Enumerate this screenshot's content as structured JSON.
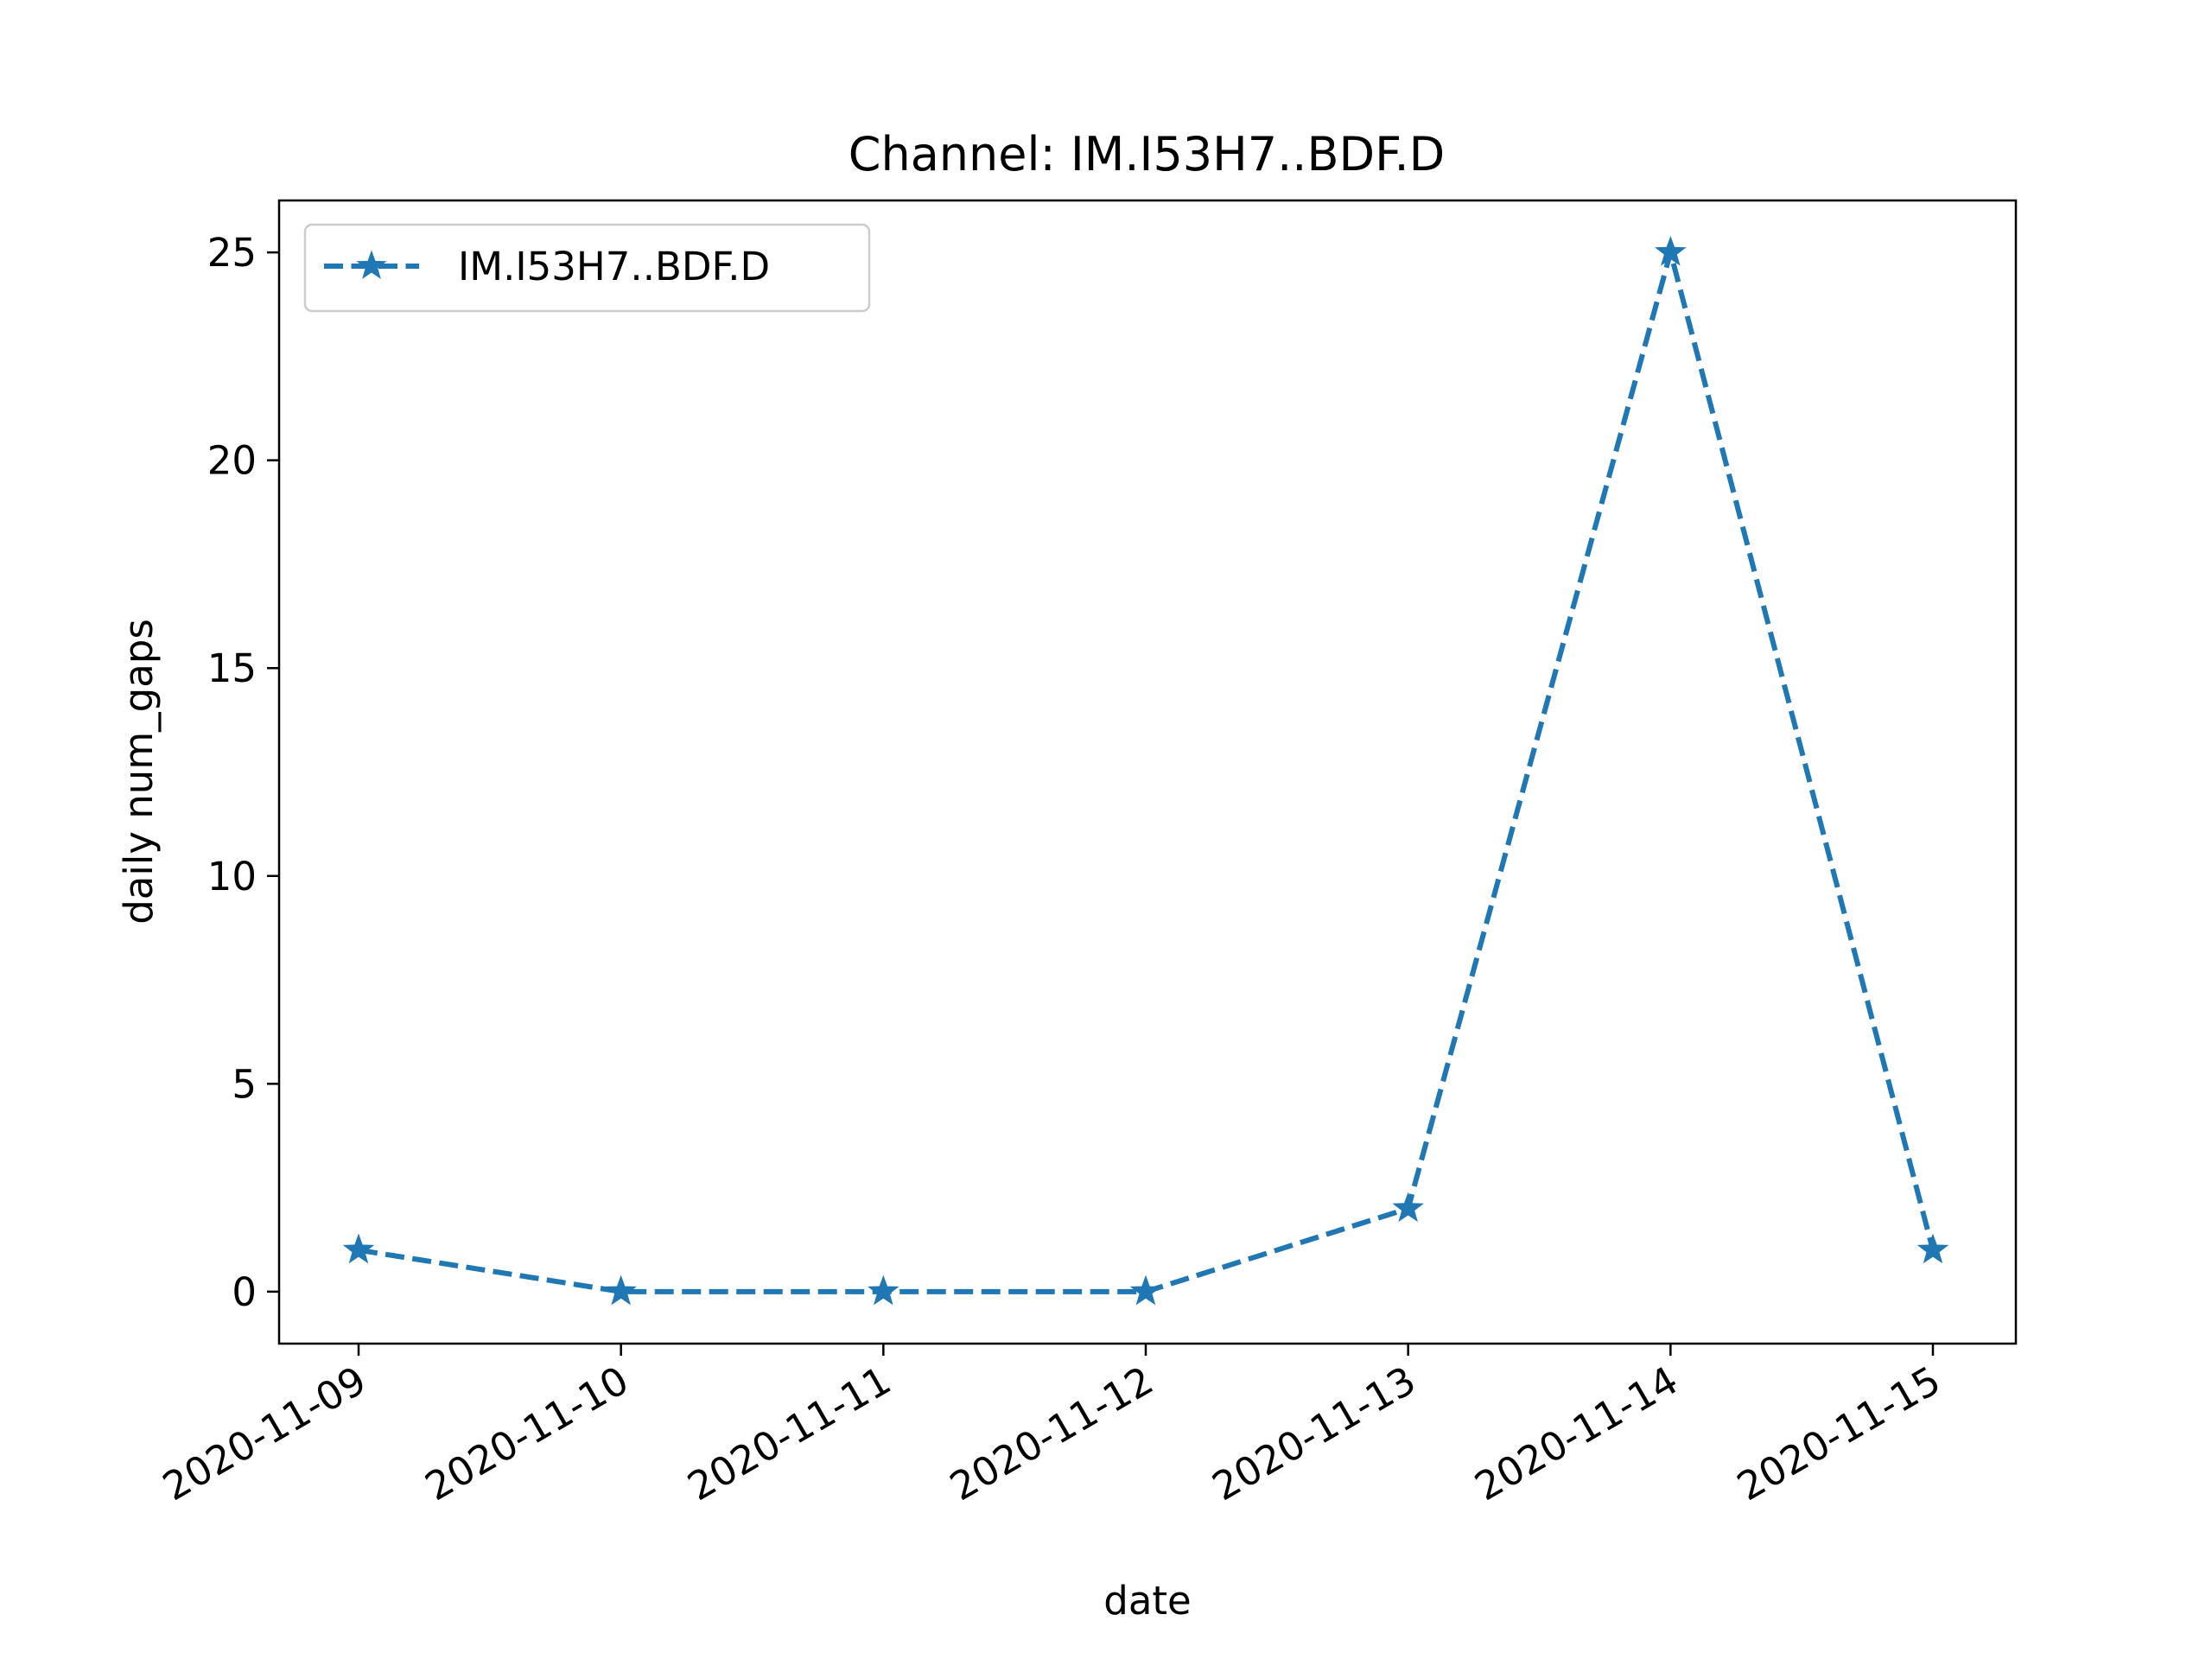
{
  "chart_data": {
    "type": "line",
    "title": "Channel: IM.I53H7..BDF.D",
    "xlabel": "date",
    "ylabel": "daily num_gaps",
    "x": [
      "2020-11-09",
      "2020-11-10",
      "2020-11-11",
      "2020-11-12",
      "2020-11-13",
      "2020-11-14",
      "2020-11-15"
    ],
    "series": [
      {
        "name": "IM.I53H7..BDF.D",
        "values": [
          1,
          0,
          0,
          0,
          2,
          25,
          1
        ],
        "color": "#1f77b4",
        "line_style": "dashed",
        "marker": "star"
      }
    ],
    "yticks": [
      0,
      5,
      10,
      15,
      20,
      25
    ],
    "ylim": [
      -1.25,
      26.25
    ],
    "grid": false,
    "legend_position": "top-left"
  }
}
